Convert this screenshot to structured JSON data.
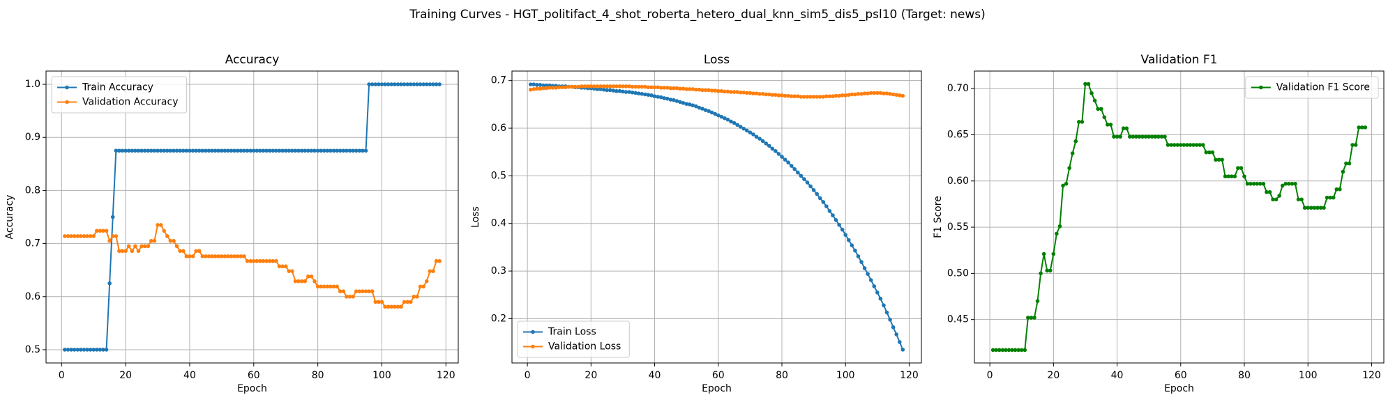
{
  "title": "Training Curves - HGT_politifact_4_shot_roberta_hetero_dual_knn_sim5_dis5_psl10 (Target: news)",
  "chart_data": [
    {
      "type": "line",
      "title": "Accuracy",
      "xlabel": "Epoch",
      "ylabel": "Accuracy",
      "x": [
        1,
        2,
        3,
        4,
        5,
        6,
        7,
        8,
        9,
        10,
        11,
        12,
        13,
        14,
        15,
        16,
        17,
        18,
        19,
        20,
        21,
        22,
        23,
        24,
        25,
        26,
        27,
        28,
        29,
        30,
        31,
        32,
        33,
        34,
        35,
        36,
        37,
        38,
        39,
        40,
        41,
        42,
        43,
        44,
        45,
        46,
        47,
        48,
        49,
        50,
        51,
        52,
        53,
        54,
        55,
        56,
        57,
        58,
        59,
        60,
        61,
        62,
        63,
        64,
        65,
        66,
        67,
        68,
        69,
        70,
        71,
        72,
        73,
        74,
        75,
        76,
        77,
        78,
        79,
        80,
        81,
        82,
        83,
        84,
        85,
        86,
        87,
        88,
        89,
        90,
        91,
        92,
        93,
        94,
        95,
        96,
        97,
        98,
        99,
        100,
        101,
        102,
        103,
        104,
        105,
        106,
        107,
        108,
        109,
        110,
        111,
        112,
        113,
        114,
        115,
        116,
        117,
        118
      ],
      "series": [
        {
          "name": "Train Accuracy",
          "color": "#1f77b4",
          "values": [
            0.5,
            0.5,
            0.5,
            0.5,
            0.5,
            0.5,
            0.5,
            0.5,
            0.5,
            0.5,
            0.5,
            0.5,
            0.5,
            0.5,
            0.625,
            0.75,
            0.875,
            0.875,
            0.875,
            0.875,
            0.875,
            0.875,
            0.875,
            0.875,
            0.875,
            0.875,
            0.875,
            0.875,
            0.875,
            0.875,
            0.875,
            0.875,
            0.875,
            0.875,
            0.875,
            0.875,
            0.875,
            0.875,
            0.875,
            0.875,
            0.875,
            0.875,
            0.875,
            0.875,
            0.875,
            0.875,
            0.875,
            0.875,
            0.875,
            0.875,
            0.875,
            0.875,
            0.875,
            0.875,
            0.875,
            0.875,
            0.875,
            0.875,
            0.875,
            0.875,
            0.875,
            0.875,
            0.875,
            0.875,
            0.875,
            0.875,
            0.875,
            0.875,
            0.875,
            0.875,
            0.875,
            0.875,
            0.875,
            0.875,
            0.875,
            0.875,
            0.875,
            0.875,
            0.875,
            0.875,
            0.875,
            0.875,
            0.875,
            0.875,
            0.875,
            0.875,
            0.875,
            0.875,
            0.875,
            0.875,
            0.875,
            0.875,
            0.875,
            0.875,
            0.875,
            1,
            1,
            1,
            1,
            1,
            1,
            1,
            1,
            1,
            1,
            1,
            1,
            1,
            1,
            1,
            1,
            1,
            1,
            1,
            1,
            1,
            1,
            1
          ]
        },
        {
          "name": "Validation Accuracy",
          "color": "#ff7f0e",
          "values": [
            0.714,
            0.714,
            0.714,
            0.714,
            0.714,
            0.714,
            0.714,
            0.714,
            0.714,
            0.714,
            0.724,
            0.724,
            0.724,
            0.724,
            0.705,
            0.714,
            0.714,
            0.686,
            0.686,
            0.686,
            0.695,
            0.686,
            0.695,
            0.686,
            0.695,
            0.695,
            0.695,
            0.705,
            0.705,
            0.735,
            0.735,
            0.724,
            0.714,
            0.705,
            0.705,
            0.695,
            0.686,
            0.686,
            0.676,
            0.676,
            0.676,
            0.686,
            0.686,
            0.676,
            0.676,
            0.676,
            0.676,
            0.676,
            0.676,
            0.676,
            0.676,
            0.676,
            0.676,
            0.676,
            0.676,
            0.676,
            0.676,
            0.667,
            0.667,
            0.667,
            0.667,
            0.667,
            0.667,
            0.667,
            0.667,
            0.667,
            0.667,
            0.657,
            0.657,
            0.657,
            0.648,
            0.648,
            0.629,
            0.629,
            0.629,
            0.629,
            0.638,
            0.638,
            0.629,
            0.619,
            0.619,
            0.619,
            0.619,
            0.619,
            0.619,
            0.619,
            0.61,
            0.61,
            0.6,
            0.6,
            0.6,
            0.61,
            0.61,
            0.61,
            0.61,
            0.61,
            0.61,
            0.59,
            0.59,
            0.59,
            0.581,
            0.581,
            0.581,
            0.581,
            0.581,
            0.581,
            0.59,
            0.59,
            0.59,
            0.6,
            0.6,
            0.619,
            0.619,
            0.629,
            0.648,
            0.648,
            0.667,
            0.667
          ]
        }
      ],
      "xlim": [
        -4.85,
        123.85
      ],
      "ylim": [
        0.475,
        1.025
      ],
      "xticks": [
        0,
        20,
        40,
        60,
        80,
        100,
        120
      ],
      "yticks": [
        0.5,
        0.6,
        0.7,
        0.8,
        0.9,
        {
          "value": 1,
          "label": "1.0"
        }
      ],
      "grid": true,
      "legend": "upper left"
    },
    {
      "type": "line",
      "title": "Loss",
      "xlabel": "Epoch",
      "ylabel": "Loss",
      "x": [
        1,
        2,
        3,
        4,
        5,
        6,
        7,
        8,
        9,
        10,
        11,
        12,
        13,
        14,
        15,
        16,
        17,
        18,
        19,
        20,
        21,
        22,
        23,
        24,
        25,
        26,
        27,
        28,
        29,
        30,
        31,
        32,
        33,
        34,
        35,
        36,
        37,
        38,
        39,
        40,
        41,
        42,
        43,
        44,
        45,
        46,
        47,
        48,
        49,
        50,
        51,
        52,
        53,
        54,
        55,
        56,
        57,
        58,
        59,
        60,
        61,
        62,
        63,
        64,
        65,
        66,
        67,
        68,
        69,
        70,
        71,
        72,
        73,
        74,
        75,
        76,
        77,
        78,
        79,
        80,
        81,
        82,
        83,
        84,
        85,
        86,
        87,
        88,
        89,
        90,
        91,
        92,
        93,
        94,
        95,
        96,
        97,
        98,
        99,
        100,
        101,
        102,
        103,
        104,
        105,
        106,
        107,
        108,
        109,
        110,
        111,
        112,
        113,
        114,
        115,
        116,
        117,
        118
      ],
      "series": [
        {
          "name": "Train Loss",
          "color": "#1f77b4",
          "values": [
            0.692,
            0.692,
            0.691,
            0.691,
            0.69,
            0.69,
            0.69,
            0.689,
            0.689,
            0.688,
            0.688,
            0.688,
            0.687,
            0.687,
            0.686,
            0.686,
            0.685,
            0.685,
            0.684,
            0.684,
            0.683,
            0.682,
            0.682,
            0.681,
            0.68,
            0.68,
            0.679,
            0.678,
            0.678,
            0.677,
            0.676,
            0.676,
            0.675,
            0.674,
            0.673,
            0.672,
            0.671,
            0.67,
            0.669,
            0.667,
            0.666,
            0.665,
            0.663,
            0.662,
            0.66,
            0.659,
            0.657,
            0.655,
            0.653,
            0.651,
            0.65,
            0.648,
            0.646,
            0.643,
            0.641,
            0.638,
            0.636,
            0.633,
            0.63,
            0.627,
            0.624,
            0.621,
            0.618,
            0.614,
            0.611,
            0.607,
            0.603,
            0.599,
            0.595,
            0.591,
            0.587,
            0.582,
            0.578,
            0.573,
            0.568,
            0.563,
            0.557,
            0.552,
            0.546,
            0.54,
            0.534,
            0.528,
            0.521,
            0.514,
            0.507,
            0.5,
            0.493,
            0.486,
            0.478,
            0.47,
            0.462,
            0.453,
            0.445,
            0.436,
            0.426,
            0.417,
            0.407,
            0.397,
            0.387,
            0.376,
            0.365,
            0.354,
            0.343,
            0.331,
            0.319,
            0.306,
            0.294,
            0.281,
            0.268,
            0.255,
            0.242,
            0.228,
            0.213,
            0.198,
            0.182,
            0.167,
            0.151,
            0.135
          ]
        },
        {
          "name": "Validation Loss",
          "color": "#ff7f0e",
          "values": [
            0.681,
            0.682,
            0.683,
            0.683,
            0.684,
            0.684,
            0.685,
            0.685,
            0.685,
            0.686,
            0.686,
            0.686,
            0.687,
            0.687,
            0.687,
            0.687,
            0.688,
            0.688,
            0.688,
            0.688,
            0.688,
            0.688,
            0.688,
            0.688,
            0.688,
            0.688,
            0.688,
            0.688,
            0.688,
            0.688,
            0.688,
            0.688,
            0.687,
            0.687,
            0.687,
            0.687,
            0.687,
            0.686,
            0.686,
            0.686,
            0.686,
            0.685,
            0.685,
            0.685,
            0.684,
            0.684,
            0.684,
            0.683,
            0.683,
            0.682,
            0.682,
            0.682,
            0.681,
            0.681,
            0.68,
            0.68,
            0.68,
            0.679,
            0.679,
            0.678,
            0.678,
            0.677,
            0.677,
            0.676,
            0.676,
            0.676,
            0.675,
            0.675,
            0.674,
            0.674,
            0.673,
            0.673,
            0.672,
            0.672,
            0.671,
            0.671,
            0.67,
            0.67,
            0.669,
            0.669,
            0.668,
            0.668,
            0.667,
            0.667,
            0.667,
            0.666,
            0.666,
            0.666,
            0.666,
            0.666,
            0.666,
            0.666,
            0.666,
            0.667,
            0.667,
            0.667,
            0.668,
            0.668,
            0.669,
            0.669,
            0.67,
            0.671,
            0.671,
            0.672,
            0.672,
            0.673,
            0.673,
            0.674,
            0.674,
            0.674,
            0.674,
            0.673,
            0.673,
            0.672,
            0.671,
            0.67,
            0.669,
            0.668
          ]
        }
      ],
      "xlim": [
        -4.85,
        123.85
      ],
      "ylim": [
        0.107,
        0.72
      ],
      "xticks": [
        0,
        20,
        40,
        60,
        80,
        100,
        120
      ],
      "yticks": [
        0.2,
        0.3,
        0.4,
        0.5,
        0.6,
        0.7
      ],
      "grid": true,
      "legend": "lower left"
    },
    {
      "type": "line",
      "title": "Validation F1",
      "xlabel": "Epoch",
      "ylabel": "F1 Score",
      "x": [
        1,
        2,
        3,
        4,
        5,
        6,
        7,
        8,
        9,
        10,
        11,
        12,
        13,
        14,
        15,
        16,
        17,
        18,
        19,
        20,
        21,
        22,
        23,
        24,
        25,
        26,
        27,
        28,
        29,
        30,
        31,
        32,
        33,
        34,
        35,
        36,
        37,
        38,
        39,
        40,
        41,
        42,
        43,
        44,
        45,
        46,
        47,
        48,
        49,
        50,
        51,
        52,
        53,
        54,
        55,
        56,
        57,
        58,
        59,
        60,
        61,
        62,
        63,
        64,
        65,
        66,
        67,
        68,
        69,
        70,
        71,
        72,
        73,
        74,
        75,
        76,
        77,
        78,
        79,
        80,
        81,
        82,
        83,
        84,
        85,
        86,
        87,
        88,
        89,
        90,
        91,
        92,
        93,
        94,
        95,
        96,
        97,
        98,
        99,
        100,
        101,
        102,
        103,
        104,
        105,
        106,
        107,
        108,
        109,
        110,
        111,
        112,
        113,
        114,
        115,
        116,
        117,
        118
      ],
      "series": [
        {
          "name": "Validation F1 Score",
          "color": "#008000",
          "values": [
            0.417,
            0.417,
            0.417,
            0.417,
            0.417,
            0.417,
            0.417,
            0.417,
            0.417,
            0.417,
            0.417,
            0.452,
            0.452,
            0.452,
            0.47,
            0.5,
            0.521,
            0.503,
            0.503,
            0.521,
            0.543,
            0.551,
            0.595,
            0.597,
            0.614,
            0.63,
            0.643,
            0.664,
            0.664,
            0.705,
            0.705,
            0.695,
            0.687,
            0.678,
            0.678,
            0.669,
            0.661,
            0.661,
            0.648,
            0.648,
            0.648,
            0.657,
            0.657,
            0.648,
            0.648,
            0.648,
            0.648,
            0.648,
            0.648,
            0.648,
            0.648,
            0.648,
            0.648,
            0.648,
            0.648,
            0.639,
            0.639,
            0.639,
            0.639,
            0.639,
            0.639,
            0.639,
            0.639,
            0.639,
            0.639,
            0.639,
            0.639,
            0.631,
            0.631,
            0.631,
            0.623,
            0.623,
            0.623,
            0.605,
            0.605,
            0.605,
            0.605,
            0.614,
            0.614,
            0.605,
            0.597,
            0.597,
            0.597,
            0.597,
            0.597,
            0.597,
            0.588,
            0.588,
            0.58,
            0.58,
            0.584,
            0.595,
            0.597,
            0.597,
            0.597,
            0.597,
            0.58,
            0.58,
            0.571,
            0.571,
            0.571,
            0.571,
            0.571,
            0.571,
            0.571,
            0.582,
            0.582,
            0.582,
            0.591,
            0.591,
            0.61,
            0.619,
            0.619,
            0.639,
            0.639,
            0.658,
            0.658,
            0.658
          ]
        }
      ],
      "xlim": [
        -4.85,
        123.85
      ],
      "ylim": [
        0.403,
        0.719
      ],
      "xticks": [
        0,
        20,
        40,
        60,
        80,
        100,
        120
      ],
      "yticks": [
        0.45,
        {
          "value": 0.5,
          "label": "0.50"
        },
        0.55,
        {
          "value": 0.6,
          "label": "0.60"
        },
        0.65,
        {
          "value": 0.7,
          "label": "0.70"
        }
      ],
      "grid": true,
      "legend": "upper right"
    }
  ]
}
